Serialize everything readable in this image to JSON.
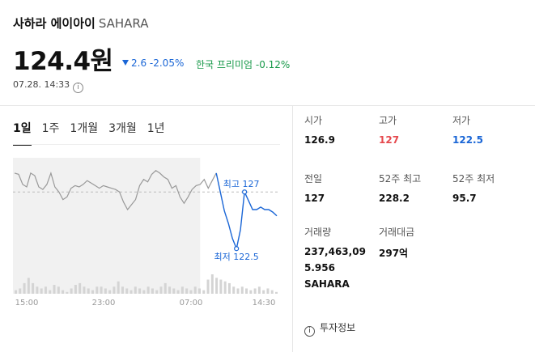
{
  "header": {
    "name": "사하라 에이아이",
    "ticker": "SAHARA",
    "price": "124.4원",
    "change": "2.6 -2.05%",
    "premium": "한국 프리미엄 -0.12%",
    "timestamp": "07.28. 14:33",
    "info_glyph": "i"
  },
  "tabs": [
    "1일",
    "1주",
    "1개월",
    "3개월",
    "1년"
  ],
  "active_tab": "1일",
  "chart_data": {
    "type": "line",
    "x_tick_labels": [
      "15:00",
      "23:00",
      "07:00",
      "14:30"
    ],
    "reference_value": 127,
    "annotations": [
      {
        "label": "최고 127",
        "value": 127
      },
      {
        "label": "최저 122.5",
        "value": 122.5
      }
    ],
    "series": [
      {
        "values": [
          128.5,
          128.4,
          127.6,
          127.4,
          128.5,
          128.3,
          127.4,
          127.2,
          127.6,
          128.5,
          127.4,
          127.0,
          126.4,
          126.6,
          127.3,
          127.5,
          127.4,
          127.6,
          127.9,
          127.7,
          127.5,
          127.3,
          127.5,
          127.4,
          127.3,
          127.2,
          127.0,
          126.2,
          125.6,
          126.0,
          126.4,
          127.5,
          128.0,
          127.8,
          128.4,
          128.7,
          128.5,
          128.2,
          128.0,
          127.3,
          127.5,
          126.6,
          126.1,
          126.6,
          127.2,
          127.5,
          127.6,
          128.0,
          127.3,
          127.9,
          128.5,
          127.0,
          125.5,
          124.5,
          123.3,
          122.5,
          124.0,
          127.0,
          126.3,
          125.6,
          125.6,
          125.8,
          125.6,
          125.6,
          125.4,
          125.1
        ],
        "segment_colors": [
          "#999999",
          "#1a66d6"
        ]
      }
    ],
    "volume": [
      0.1,
      0.15,
      0.3,
      0.45,
      0.3,
      0.2,
      0.15,
      0.2,
      0.1,
      0.25,
      0.2,
      0.1,
      0.05,
      0.15,
      0.25,
      0.3,
      0.2,
      0.15,
      0.1,
      0.2,
      0.2,
      0.15,
      0.1,
      0.2,
      0.35,
      0.2,
      0.15,
      0.1,
      0.2,
      0.15,
      0.1,
      0.2,
      0.15,
      0.1,
      0.2,
      0.3,
      0.2,
      0.15,
      0.1,
      0.2,
      0.15,
      0.1,
      0.2,
      0.15,
      0.1,
      0.4,
      0.55,
      0.45,
      0.4,
      0.35,
      0.3,
      0.2,
      0.15,
      0.2,
      0.15,
      0.1,
      0.15,
      0.2,
      0.1,
      0.15,
      0.1,
      0.05
    ],
    "colors": {
      "past": "#999999",
      "current": "#1a66d6",
      "reference": "#bbbbbb",
      "volume": "#d4d4d4",
      "shade": "#f1f1f1"
    }
  },
  "stats": {
    "open_label": "시가",
    "open_value": "126.9",
    "high_label": "고가",
    "high_value": "127",
    "low_label": "저가",
    "low_value": "122.5",
    "prev_label": "전일",
    "prev_value": "127",
    "w52_high_label": "52주 최고",
    "w52_high_value": "228.2",
    "w52_low_label": "52주 최저",
    "w52_low_value": "95.7",
    "volume_label": "거래량",
    "volume_value_line1": "237,463,09",
    "volume_value_line2": "5.956",
    "volume_unit": "SAHARA",
    "amount_label": "거래대금",
    "amount_value": "297억"
  },
  "invest_info": "투자정보",
  "colors": {
    "up": "#e5484d",
    "down": "#1a66d6",
    "premium": "#1a9a4b"
  }
}
